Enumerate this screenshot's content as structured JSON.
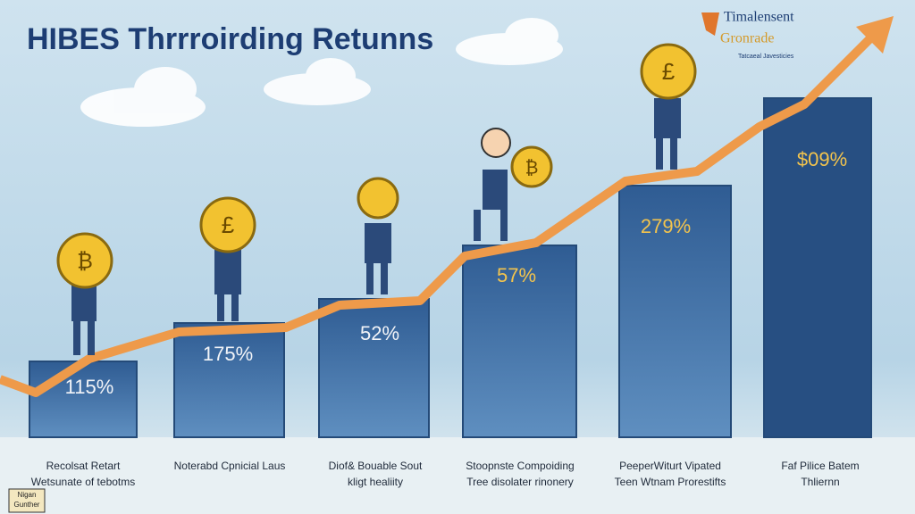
{
  "header": {
    "title": "HIBES Thrrroirding Retunns"
  },
  "logo": {
    "line1": "Timalensent",
    "line2": "Gronrade",
    "tagline": "Tatcaeal Javesticies"
  },
  "bars": [
    {
      "label": "115%",
      "caption": [
        "Recolsat Retart",
        "Wetsunate of tebotms"
      ]
    },
    {
      "label": "175%",
      "caption": [
        "Noterabd Cpnicial Laus"
      ]
    },
    {
      "label": "52%",
      "caption": [
        "Diof& Bouable Sout",
        "kligt healiity"
      ]
    },
    {
      "label": "57%",
      "caption": [
        "Stoopnste Compoiding",
        "Tree disolater rinonery"
      ]
    },
    {
      "label": "279%",
      "caption": [
        "PeeperWiturt Vipated",
        "Teen Wtnam Prorestifts"
      ]
    },
    {
      "label": "$09%",
      "caption": [
        "Faf Pilice Batem",
        "Thliernn"
      ]
    }
  ],
  "badge": [
    "Nigan",
    "Gunther"
  ]
}
